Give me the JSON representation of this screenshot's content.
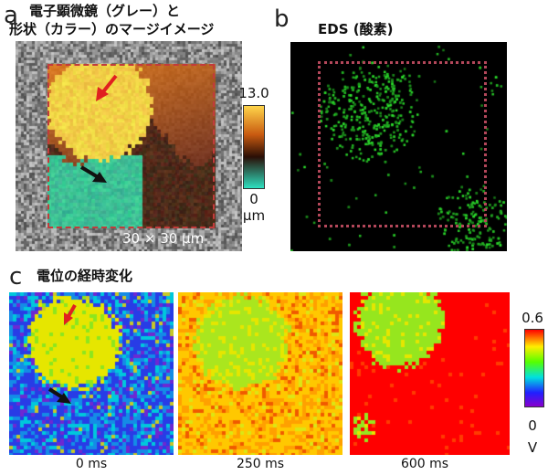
{
  "panel_a": {
    "letter": "a",
    "title_line1": "電子顕微鏡（グレー）と",
    "title_line2": "形状（カラー）のマージイメージ",
    "scale_label": "30 × 30 µm",
    "colorbar": {
      "max_label": "13.0",
      "min_label": "0",
      "unit": "µm",
      "colors": [
        "#ffd54a",
        "#c85a10",
        "#2a0e06",
        "#2ee0c0"
      ]
    }
  },
  "panel_b": {
    "letter": "b",
    "title": "EDS (酸素)",
    "signal_color": "#33cc33"
  },
  "panel_c": {
    "letter": "c",
    "title": "電位の経時変化",
    "frames": [
      {
        "label": "0 ms"
      },
      {
        "label": "250 ms"
      },
      {
        "label": "600 ms"
      }
    ],
    "colorbar": {
      "max_label": "0.6",
      "min_label": "0",
      "unit": "V"
    }
  },
  "arrows": {
    "red": "#e02020",
    "black": "#111111"
  }
}
